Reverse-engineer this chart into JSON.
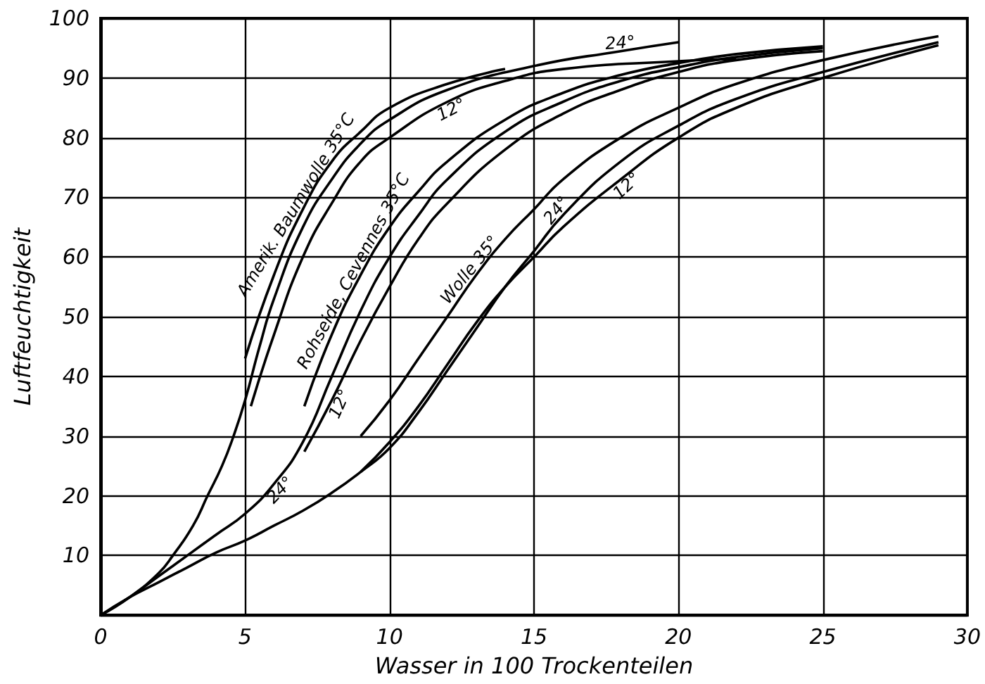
{
  "chart_data": {
    "type": "line",
    "xlabel": "Wasser in 100 Trockenteilen",
    "ylabel": "Luftfeuchtigkeit",
    "xlim": [
      0,
      30
    ],
    "xticks": [
      0,
      5,
      10,
      15,
      20,
      25,
      30
    ],
    "ylim": [
      0,
      100
    ],
    "yticks": [
      {
        "value": 0,
        "label": null
      },
      10,
      20,
      30,
      40,
      50,
      60,
      70,
      80,
      90,
      100
    ],
    "grid": true,
    "marker": "none",
    "line_style": "solid",
    "series": [
      {
        "color": "#000000",
        "x": [
          5.0,
          6,
          7,
          8,
          9,
          10,
          12,
          14
        ],
        "values": [
          43,
          57,
          68,
          76,
          81,
          85,
          89,
          91.5
        ]
      },
      {
        "color": "#000000",
        "x": [
          0,
          1,
          2,
          2.5,
          3.2,
          3.7,
          4.2,
          4.6,
          5.0,
          5.5,
          6,
          7,
          8,
          9,
          10,
          12,
          15,
          18,
          20
        ],
        "values": [
          0,
          3,
          7,
          10,
          15,
          20,
          25,
          30,
          36,
          45,
          53,
          65,
          73,
          79,
          83,
          88,
          92,
          94.5,
          96
        ]
      },
      {
        "color": "#000000",
        "x": [
          5.2,
          6,
          7,
          8,
          9,
          10,
          12,
          14,
          16,
          20,
          22
        ],
        "values": [
          35,
          47,
          60,
          69,
          76,
          80,
          86,
          89.5,
          91.5,
          92.8,
          93.2
        ]
      },
      {
        "color": "#000000",
        "x": [
          7.05,
          8,
          9,
          10,
          11,
          12,
          14,
          16,
          18,
          20,
          22,
          25
        ],
        "values": [
          35,
          47,
          57,
          65,
          71,
          76,
          83,
          87.5,
          90.5,
          92.5,
          94,
          95.3
        ]
      },
      {
        "color": "#000000",
        "x": [
          0,
          1,
          2,
          3,
          4,
          5,
          6,
          7,
          8,
          9,
          10,
          11,
          12,
          14,
          16,
          18,
          20,
          22,
          25
        ],
        "values": [
          0,
          3,
          6.5,
          10,
          13.5,
          17,
          22,
          29,
          40,
          51,
          60,
          67,
          73,
          81,
          86,
          89.5,
          91.8,
          93.5,
          95
        ]
      },
      {
        "color": "#000000",
        "x": [
          7.05,
          8,
          9,
          10,
          11,
          12,
          14,
          16,
          18,
          20,
          22,
          25
        ],
        "values": [
          27.4,
          36,
          46,
          55,
          63,
          69,
          78,
          84,
          88,
          91,
          93,
          94.5
        ]
      },
      {
        "color": "#000000",
        "x": [
          9,
          10,
          11,
          12,
          13,
          14,
          15,
          16,
          18,
          20,
          22,
          25,
          29
        ],
        "values": [
          30,
          36,
          43,
          50,
          57,
          63,
          68,
          73,
          80,
          85,
          89,
          93,
          97
        ]
      },
      {
        "color": "#000000",
        "x": [
          0,
          1,
          2,
          3,
          4,
          5,
          6,
          7,
          8,
          9,
          10,
          11,
          12,
          13,
          14,
          15,
          16,
          18,
          20,
          22,
          25,
          29
        ],
        "values": [
          0,
          3,
          5.5,
          8,
          10.5,
          12.5,
          15,
          17.5,
          20.5,
          24,
          28,
          34,
          41,
          48,
          55,
          61,
          67,
          76,
          82,
          86.5,
          91,
          96
        ]
      },
      {
        "color": "#000000",
        "x": [
          9,
          10,
          11,
          12,
          13,
          14,
          15,
          16,
          18,
          20,
          22,
          25,
          29
        ],
        "values": [
          24,
          29,
          35,
          42,
          49,
          55,
          60,
          65,
          73,
          80,
          85,
          90,
          95.5
        ]
      }
    ],
    "annotations": [
      {
        "text": "Amerik. Baumwolle 35°C",
        "x": 7,
        "y": 68
      },
      {
        "text": "12°",
        "x": 12,
        "y": 86
      },
      {
        "text": "24°",
        "x": 18,
        "y": 94.5
      },
      {
        "text": "Rohseide, Cevennes 35°C",
        "x": 9,
        "y": 57
      },
      {
        "text": "24°",
        "x": 6,
        "y": 22
      },
      {
        "text": "12°",
        "x": 8,
        "y": 36
      },
      {
        "text": "Wolle 35°",
        "x": 13,
        "y": 57
      },
      {
        "text": "24°",
        "x": 16,
        "y": 67
      },
      {
        "text": "12°",
        "x": 18,
        "y": 73
      }
    ]
  }
}
